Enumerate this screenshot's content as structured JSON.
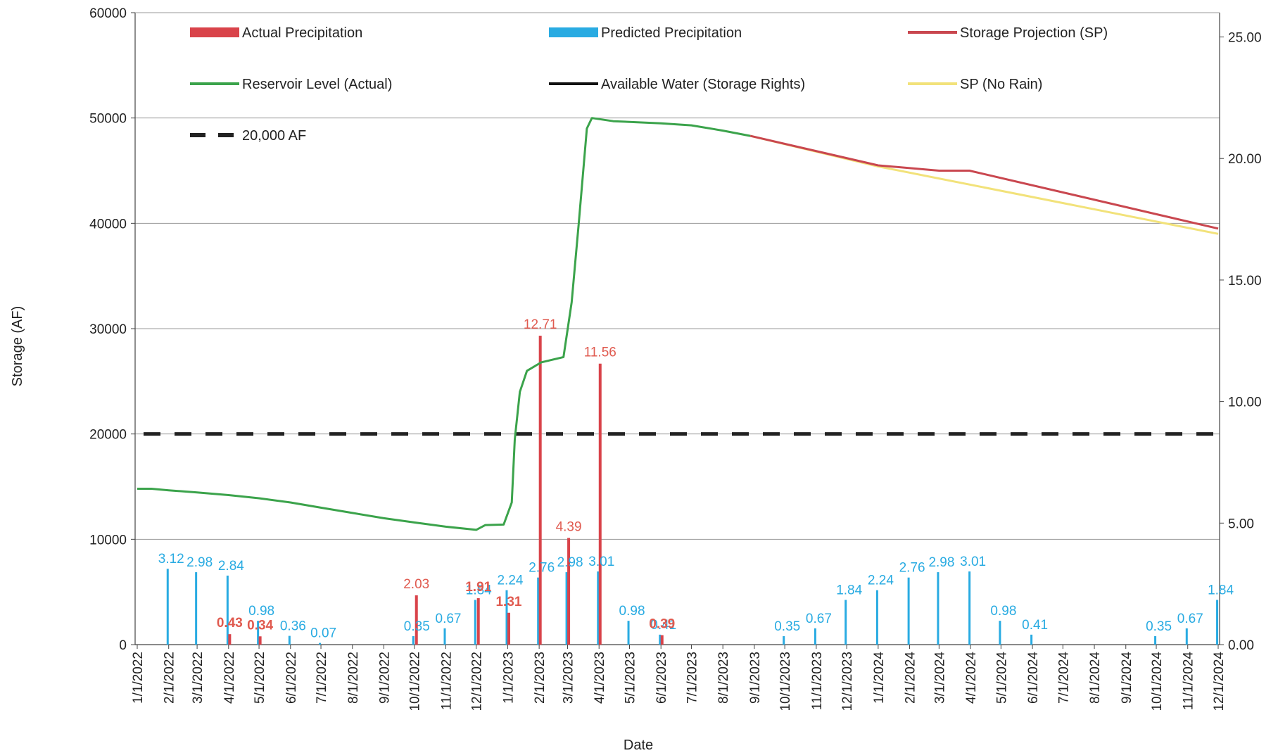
{
  "chart_data": {
    "type": "line",
    "xlabel": "Date",
    "ylabel": "Storage (AF)",
    "x_ticks": [
      "1/1/2022",
      "2/1/2022",
      "3/1/2022",
      "4/1/2022",
      "5/1/2022",
      "6/1/2022",
      "7/1/2022",
      "8/1/2022",
      "9/1/2022",
      "10/1/2022",
      "11/1/2022",
      "12/1/2022",
      "1/1/2023",
      "2/1/2023",
      "3/1/2023",
      "4/1/2023",
      "5/1/2023",
      "6/1/2023",
      "7/1/2023",
      "8/1/2023",
      "9/1/2023",
      "10/1/2023",
      "11/1/2023",
      "12/1/2023",
      "1/1/2024",
      "2/1/2024",
      "3/1/2024",
      "4/1/2024",
      "5/1/2024",
      "6/1/2024",
      "7/1/2024",
      "8/1/2024",
      "9/1/2024",
      "10/1/2024",
      "11/1/2024",
      "12/1/2024"
    ],
    "y_left": {
      "min": 0,
      "max": 60000,
      "ticks": [
        "0",
        "10000",
        "20000",
        "30000",
        "40000",
        "50000",
        "60000"
      ]
    },
    "y_right": {
      "min": 0,
      "max": 26,
      "ticks": [
        "0.00",
        "5.00",
        "10.00",
        "15.00",
        "20.00",
        "25.00"
      ]
    },
    "grid": true,
    "legend": [
      {
        "label": "Actual Precipitation",
        "color": "#d9434a",
        "kind": "box"
      },
      {
        "label": "Predicted Precipitation",
        "color": "#29abe2",
        "kind": "box"
      },
      {
        "label": "Storage Projection (SP)",
        "color": "#c9474f",
        "kind": "line"
      },
      {
        "label": "Reservoir Level (Actual)",
        "color": "#3ba34b",
        "kind": "line"
      },
      {
        "label": "Available Water (Storage Rights)",
        "color": "#111111",
        "kind": "line"
      },
      {
        "label": "SP (No Rain)",
        "color": "#f2e27a",
        "kind": "line"
      },
      {
        "label": "20,000 AF",
        "color": "#222222",
        "kind": "dash"
      }
    ],
    "reference_line": {
      "name": "20,000 AF",
      "y": 20000
    },
    "series": [
      {
        "name": "Reservoir Level (Actual)",
        "axis": "left",
        "color": "#3ba34b",
        "points": [
          [
            "1/1/2022",
            14800
          ],
          [
            "1/15/2022",
            14800
          ],
          [
            "2/1/2022",
            14650
          ],
          [
            "3/1/2022",
            14450
          ],
          [
            "4/1/2022",
            14200
          ],
          [
            "5/1/2022",
            13900
          ],
          [
            "6/1/2022",
            13500
          ],
          [
            "7/1/2022",
            13000
          ],
          [
            "8/1/2022",
            12500
          ],
          [
            "9/1/2022",
            12000
          ],
          [
            "10/1/2022",
            11600
          ],
          [
            "11/1/2022",
            11200
          ],
          [
            "12/1/2022",
            10900
          ],
          [
            "12/10/2022",
            11350
          ],
          [
            "12/28/2022",
            11400
          ],
          [
            "1/5/2023",
            13500
          ],
          [
            "1/8/2023",
            19500
          ],
          [
            "1/13/2023",
            24000
          ],
          [
            "1/20/2023",
            26000
          ],
          [
            "2/3/2023",
            26800
          ],
          [
            "2/25/2023",
            27300
          ],
          [
            "3/5/2023",
            32500
          ],
          [
            "3/12/2023",
            40000
          ],
          [
            "3/20/2023",
            49000
          ],
          [
            "3/25/2023",
            50000
          ],
          [
            "4/15/2023",
            49700
          ],
          [
            "6/1/2023",
            49500
          ],
          [
            "7/1/2023",
            49300
          ],
          [
            "8/1/2023",
            48800
          ],
          [
            "8/28/2023",
            48300
          ]
        ]
      },
      {
        "name": "Storage Projection (SP)",
        "axis": "left",
        "color": "#c9474f",
        "points": [
          [
            "8/28/2023",
            48300
          ],
          [
            "1/1/2024",
            45500
          ],
          [
            "3/1/2024",
            45000
          ],
          [
            "3/31/2024",
            45000
          ],
          [
            "12/1/2024",
            39500
          ]
        ]
      },
      {
        "name": "SP (No Rain)",
        "axis": "left",
        "color": "#f2e27a",
        "points": [
          [
            "8/28/2023",
            48300
          ],
          [
            "1/1/2024",
            45400
          ],
          [
            "12/1/2024",
            39000
          ]
        ]
      }
    ],
    "actual_precipitation": [
      {
        "date": "3/31/2022",
        "value": 0.43,
        "label": "0.43"
      },
      {
        "date": "4/30/2022",
        "value": 0.34,
        "label": "0.34"
      },
      {
        "date": "10/1/2022",
        "value": 2.03,
        "label": "2.03"
      },
      {
        "date": "12/1/2022",
        "value": 1.91,
        "label": "1.91"
      },
      {
        "date": "12/31/2022",
        "value": 1.31,
        "label": "1.31"
      },
      {
        "date": "1/31/2023",
        "value": 12.71,
        "label": "12.71"
      },
      {
        "date": "2/28/2023",
        "value": 4.39,
        "label": "4.39"
      },
      {
        "date": "3/31/2023",
        "value": 11.56,
        "label": "11.56"
      },
      {
        "date": "5/31/2023",
        "value": 0.39,
        "label": "0.39"
      }
    ],
    "predicted_precipitation": [
      {
        "date": "1/31/2022",
        "value": 3.12,
        "label": "3.12"
      },
      {
        "date": "2/28/2022",
        "value": 2.98,
        "label": "2.98"
      },
      {
        "date": "3/31/2022",
        "value": 2.84,
        "label": "2.84"
      },
      {
        "date": "4/30/2022",
        "value": 0.98,
        "label": "0.98"
      },
      {
        "date": "5/31/2022",
        "value": 0.36,
        "label": "0.36"
      },
      {
        "date": "6/30/2022",
        "value": 0.07,
        "label": "0.07"
      },
      {
        "date": "9/30/2022",
        "value": 0.35,
        "label": "0.35"
      },
      {
        "date": "10/31/2022",
        "value": 0.67,
        "label": "0.67"
      },
      {
        "date": "11/30/2022",
        "value": 1.84,
        "label": "1.84"
      },
      {
        "date": "12/31/2022",
        "value": 2.24,
        "label": "2.24"
      },
      {
        "date": "1/31/2023",
        "value": 2.76,
        "label": "2.76"
      },
      {
        "date": "2/28/2023",
        "value": 2.98,
        "label": "2.98"
      },
      {
        "date": "3/31/2023",
        "value": 3.01,
        "label": "3.01"
      },
      {
        "date": "4/30/2023",
        "value": 0.98,
        "label": "0.98"
      },
      {
        "date": "5/31/2023",
        "value": 0.41,
        "label": "0.41"
      },
      {
        "date": "9/30/2023",
        "value": 0.35,
        "label": "0.35"
      },
      {
        "date": "10/31/2023",
        "value": 0.67,
        "label": "0.67"
      },
      {
        "date": "11/30/2023",
        "value": 1.84,
        "label": "1.84"
      },
      {
        "date": "12/31/2023",
        "value": 2.24,
        "label": "2.24"
      },
      {
        "date": "1/31/2024",
        "value": 2.76,
        "label": "2.76"
      },
      {
        "date": "2/29/2024",
        "value": 2.98,
        "label": "2.98"
      },
      {
        "date": "3/31/2024",
        "value": 3.01,
        "label": "3.01"
      },
      {
        "date": "4/30/2024",
        "value": 0.98,
        "label": "0.98"
      },
      {
        "date": "5/31/2024",
        "value": 0.41,
        "label": "0.41"
      },
      {
        "date": "9/30/2024",
        "value": 0.35,
        "label": "0.35"
      },
      {
        "date": "10/31/2024",
        "value": 0.67,
        "label": "0.67"
      },
      {
        "date": "11/30/2024",
        "value": 1.84,
        "label": "1.84"
      }
    ]
  }
}
